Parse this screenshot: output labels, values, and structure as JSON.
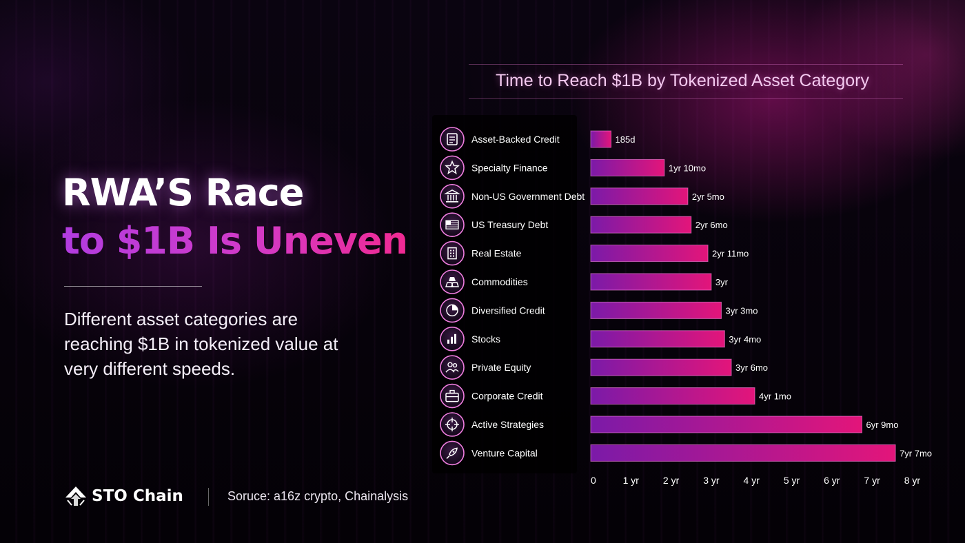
{
  "headline": {
    "line1": "RWA’S Race",
    "line2": "to $1B Is Uneven"
  },
  "subtitle": "Different asset categories are reaching $1B in tokenized value at very different speeds.",
  "footer": {
    "brand": "STO Chain",
    "source": "Soruce: a16z crypto, Chainalysis"
  },
  "colors": {
    "bar_start": "#7b1aa8",
    "bar_end": "#e3157a",
    "icon_ring": "#f07ee0",
    "accent_purple": "#b23ce0",
    "accent_pink": "#f02a92"
  },
  "chart_data": {
    "type": "bar",
    "orientation": "horizontal",
    "title": "Time to Reach $1B by Tokenized Asset Category",
    "categories": [
      "Asset-Backed Credit",
      "Specialty Finance",
      "Non-US Government Debt",
      "US Treasury Debt",
      "Real Estate",
      "Commodities",
      "Diversified Credit",
      "Stocks",
      "Private Equity",
      "Corporate Credit",
      "Active Strategies",
      "Venture Capital"
    ],
    "icons": [
      "document-icon",
      "star-icon",
      "bank-icon",
      "us-flag-icon",
      "building-icon",
      "gold-bars-icon",
      "pie-chart-icon",
      "bar-chart-icon",
      "people-icon",
      "briefcase-icon",
      "crosshair-icon",
      "rocket-icon"
    ],
    "values": [
      0.507,
      1.833,
      2.417,
      2.5,
      2.917,
      3.0,
      3.25,
      3.333,
      3.5,
      4.083,
      6.75,
      7.583
    ],
    "value_labels": [
      "185d",
      "1yr 10mo",
      "2yr 5mo",
      "2yr 6mo",
      "2yr 11mo",
      "3yr",
      "3yr 3mo",
      "3yr 4mo",
      "3yr 6mo",
      "4yr 1mo",
      "6yr 9mo",
      "7yr 7mo"
    ],
    "xticks": [
      0,
      1,
      2,
      3,
      4,
      5,
      6,
      7,
      8
    ],
    "xtick_labels": [
      "0",
      "1 yr",
      "2 yr",
      "3 yr",
      "4 yr",
      "5 yr",
      "6 yr",
      "7 yr",
      "8 yr"
    ],
    "xlim": [
      0,
      8
    ],
    "grid": false,
    "legend": "none"
  }
}
